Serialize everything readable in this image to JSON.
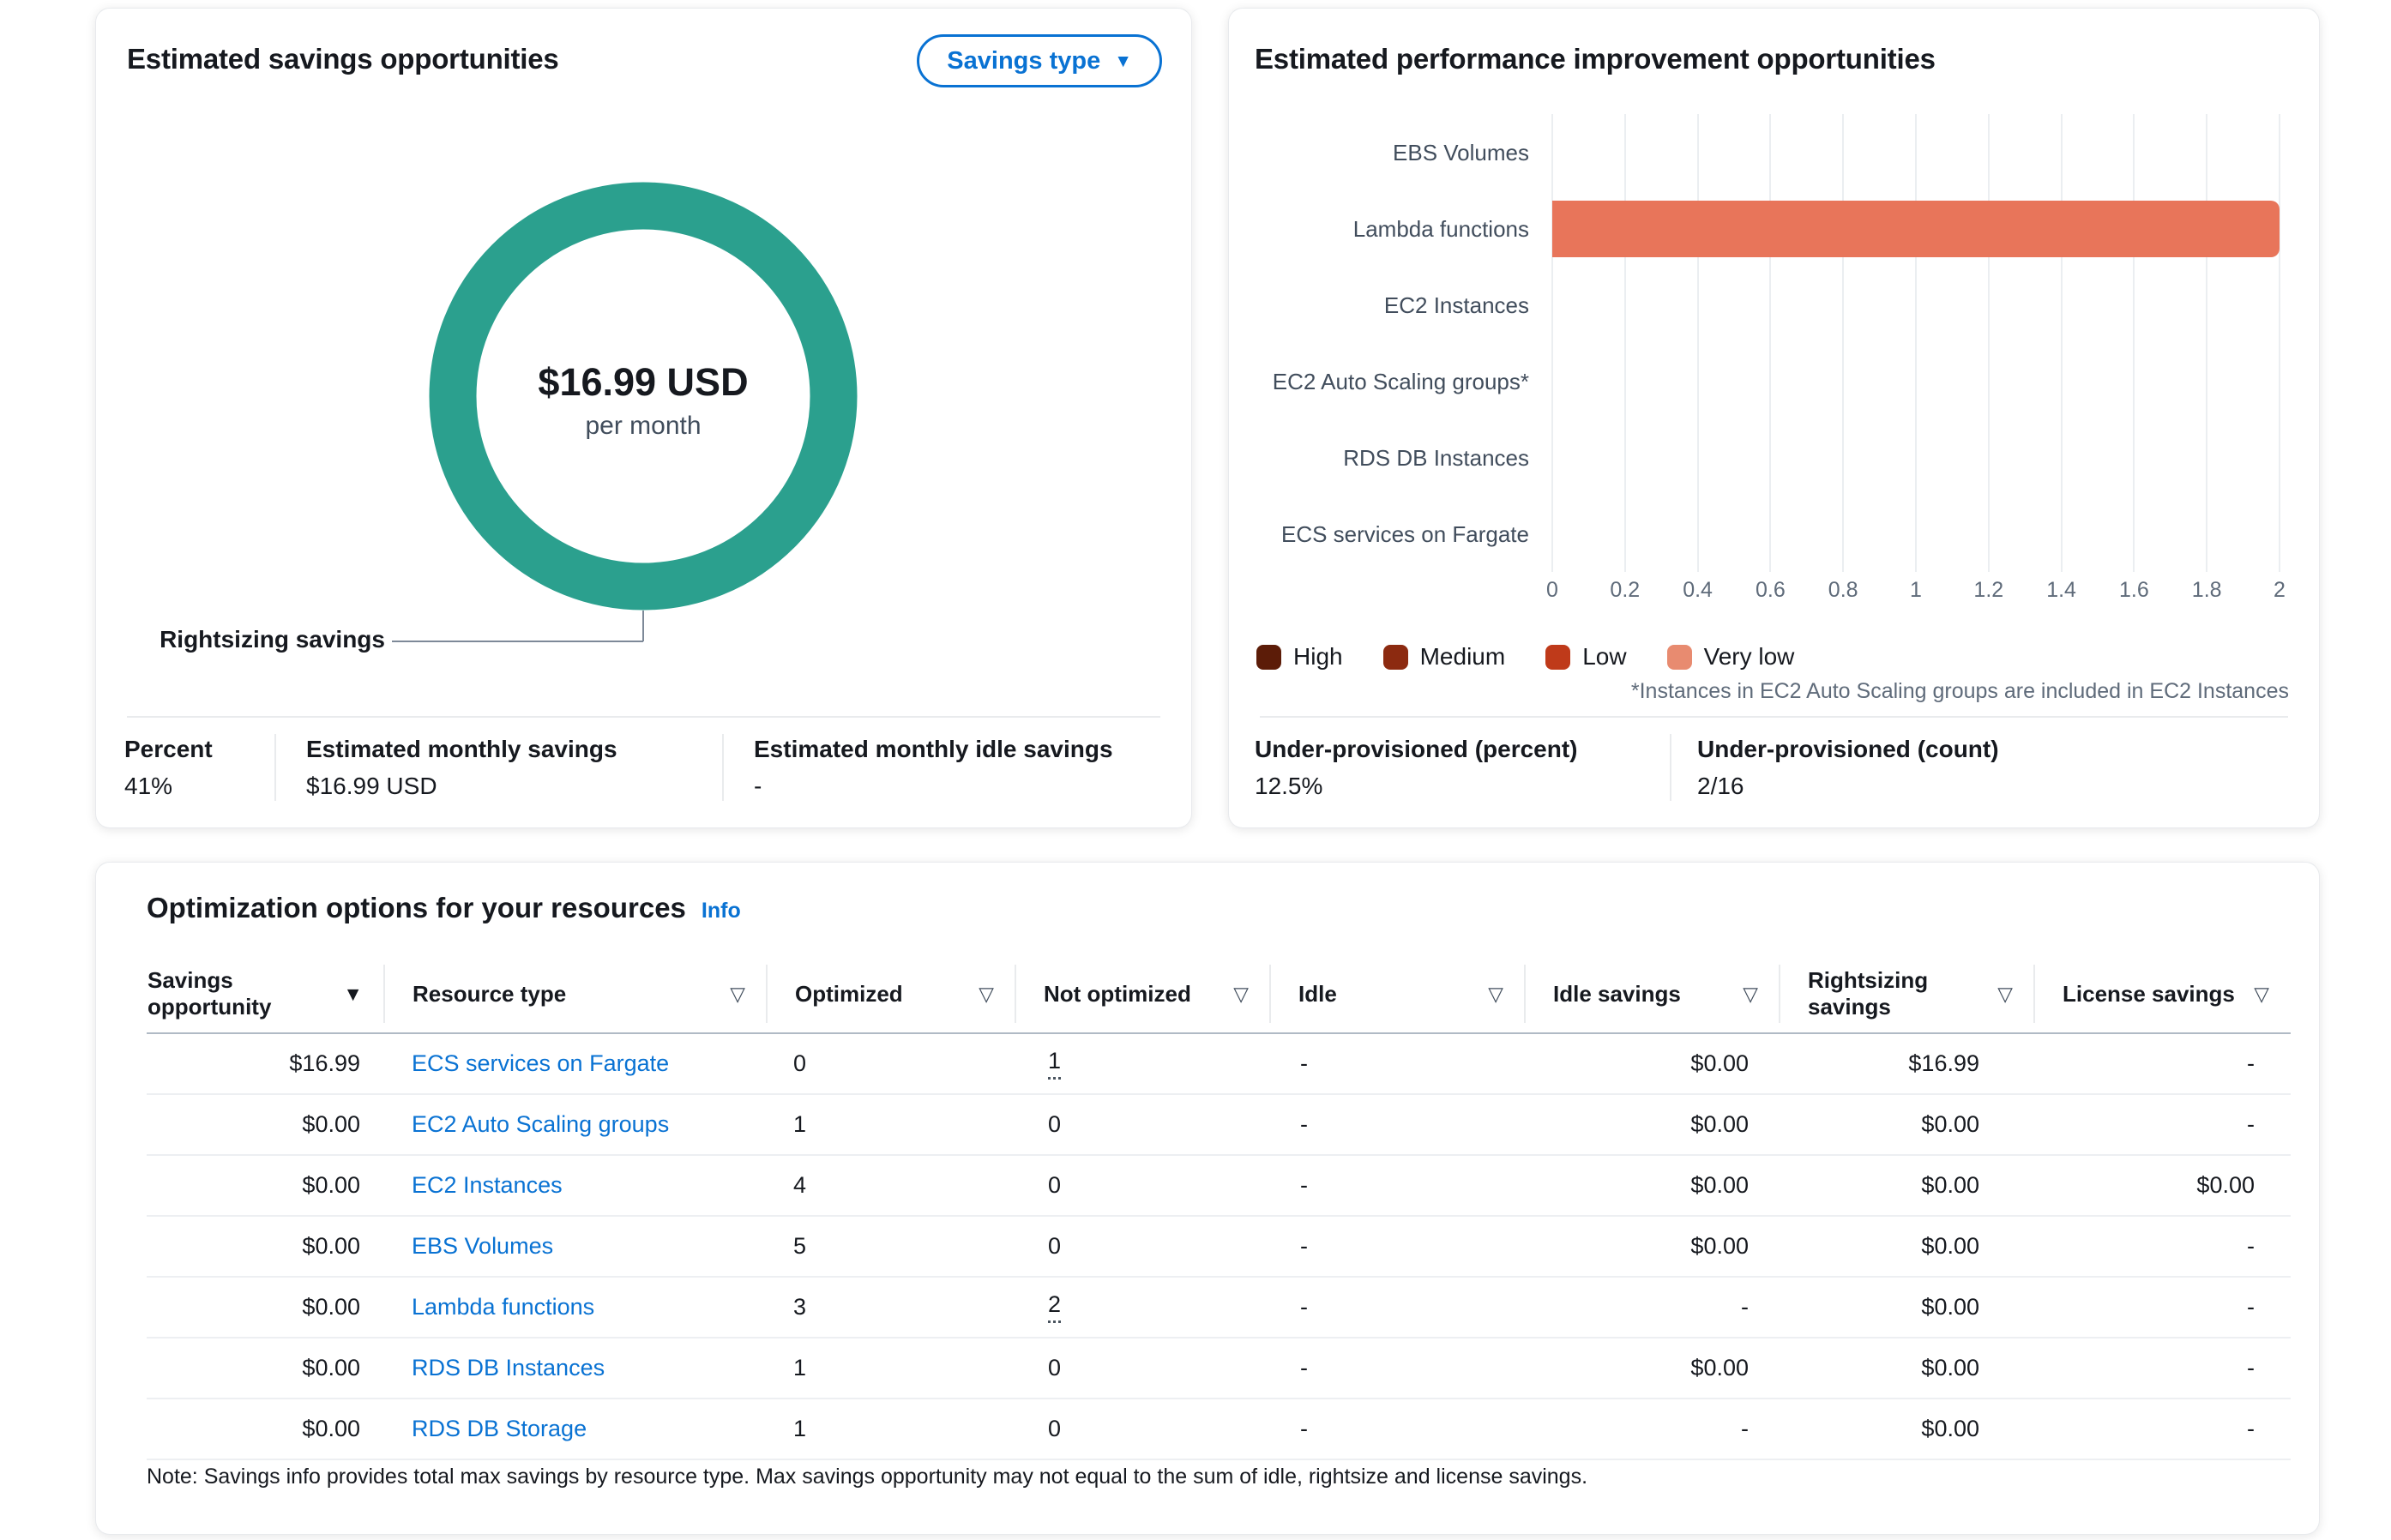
{
  "savings_card": {
    "title": "Estimated savings opportunities",
    "savings_type_button": {
      "label": "Savings type",
      "caret": "▼"
    },
    "donut": {
      "value": "$16.99 USD",
      "unit": "per month",
      "callout_label": "Rightsizing savings",
      "color": "#2ba08e"
    },
    "stats": [
      {
        "label": "Percent",
        "value": "41%"
      },
      {
        "label": "Estimated monthly savings",
        "value": "$16.99 USD"
      },
      {
        "label": "Estimated monthly idle savings",
        "value": "-"
      }
    ]
  },
  "performance_card": {
    "title": "Estimated performance improvement opportunities",
    "categories": [
      "EBS Volumes",
      "Lambda functions",
      "EC2 Instances",
      "EC2 Auto Scaling groups*",
      "RDS DB Instances",
      "ECS services on Fargate"
    ],
    "x_ticks": [
      "0",
      "0.2",
      "0.4",
      "0.6",
      "0.8",
      "1",
      "1.2",
      "1.4",
      "1.6",
      "1.8",
      "2"
    ],
    "x_max": 2,
    "bar": {
      "category": "Lambda functions",
      "value": 2,
      "severity": "Very low",
      "color": "#e8755a"
    },
    "legend": [
      {
        "label": "High",
        "color": "#5c1c08"
      },
      {
        "label": "Medium",
        "color": "#8c2a10"
      },
      {
        "label": "Low",
        "color": "#bf3a1a"
      },
      {
        "label": "Very low",
        "color": "#e88b70"
      }
    ],
    "footnote": "*Instances in EC2 Auto Scaling groups are included in EC2 Instances",
    "stats": [
      {
        "label": "Under-provisioned (percent)",
        "value": "12.5%"
      },
      {
        "label": "Under-provisioned (count)",
        "value": "2/16"
      }
    ]
  },
  "table_card": {
    "title": "Optimization options for your resources",
    "info_link": "Info",
    "columns": [
      {
        "label": "Savings opportunity",
        "sort": "desc-active",
        "align": "right"
      },
      {
        "label": "Resource type",
        "sort": "none",
        "align": "left"
      },
      {
        "label": "Optimized",
        "sort": "none",
        "align": "left"
      },
      {
        "label": "Not optimized",
        "sort": "none",
        "align": "left"
      },
      {
        "label": "Idle",
        "sort": "none",
        "align": "left"
      },
      {
        "label": "Idle savings",
        "sort": "none",
        "align": "right"
      },
      {
        "label": "Rightsizing savings",
        "sort": "none",
        "align": "right"
      },
      {
        "label": "License savings",
        "sort": "none",
        "align": "right"
      }
    ],
    "rows": [
      {
        "cells": [
          "$16.99",
          "ECS services on Fargate",
          "0",
          "1",
          "-",
          "$0.00",
          "$16.99",
          "-"
        ],
        "dotted_col4": true
      },
      {
        "cells": [
          "$0.00",
          "EC2 Auto Scaling groups",
          "1",
          "0",
          "-",
          "$0.00",
          "$0.00",
          "-"
        ]
      },
      {
        "cells": [
          "$0.00",
          "EC2 Instances",
          "4",
          "0",
          "-",
          "$0.00",
          "$0.00",
          "$0.00"
        ]
      },
      {
        "cells": [
          "$0.00",
          "EBS Volumes",
          "5",
          "0",
          "-",
          "$0.00",
          "$0.00",
          "-"
        ]
      },
      {
        "cells": [
          "$0.00",
          "Lambda functions",
          "3",
          "2",
          "-",
          "-",
          "$0.00",
          "-"
        ],
        "dotted_col4": true
      },
      {
        "cells": [
          "$0.00",
          "RDS DB Instances",
          "1",
          "0",
          "-",
          "$0.00",
          "$0.00",
          "-"
        ]
      },
      {
        "cells": [
          "$0.00",
          "RDS DB Storage",
          "1",
          "0",
          "-",
          "-",
          "$0.00",
          "-"
        ]
      }
    ],
    "note": "Note: Savings info provides total max savings by resource type. Max savings opportunity may not equal to the sum of idle, rightsize and license savings."
  },
  "chart_data": [
    {
      "type": "pie",
      "title": "Estimated savings opportunities",
      "labels": [
        "Rightsizing savings"
      ],
      "values": [
        16.99
      ],
      "center_label": "$16.99 USD per month",
      "percent": "41%",
      "colors": [
        "#2ba08e"
      ]
    },
    {
      "type": "bar",
      "orientation": "horizontal",
      "title": "Estimated performance improvement opportunities",
      "categories": [
        "EBS Volumes",
        "Lambda functions",
        "EC2 Instances",
        "EC2 Auto Scaling groups*",
        "RDS DB Instances",
        "ECS services on Fargate"
      ],
      "series": [
        {
          "name": "Very low",
          "values": [
            0,
            2,
            0,
            0,
            0,
            0
          ]
        }
      ],
      "xlabel": "",
      "ylabel": "",
      "xlim": [
        0,
        2
      ],
      "x_tick_step": 0.2,
      "grid": true,
      "legend_entries": [
        "High",
        "Medium",
        "Low",
        "Very low"
      ],
      "legend_position": "bottom"
    }
  ]
}
